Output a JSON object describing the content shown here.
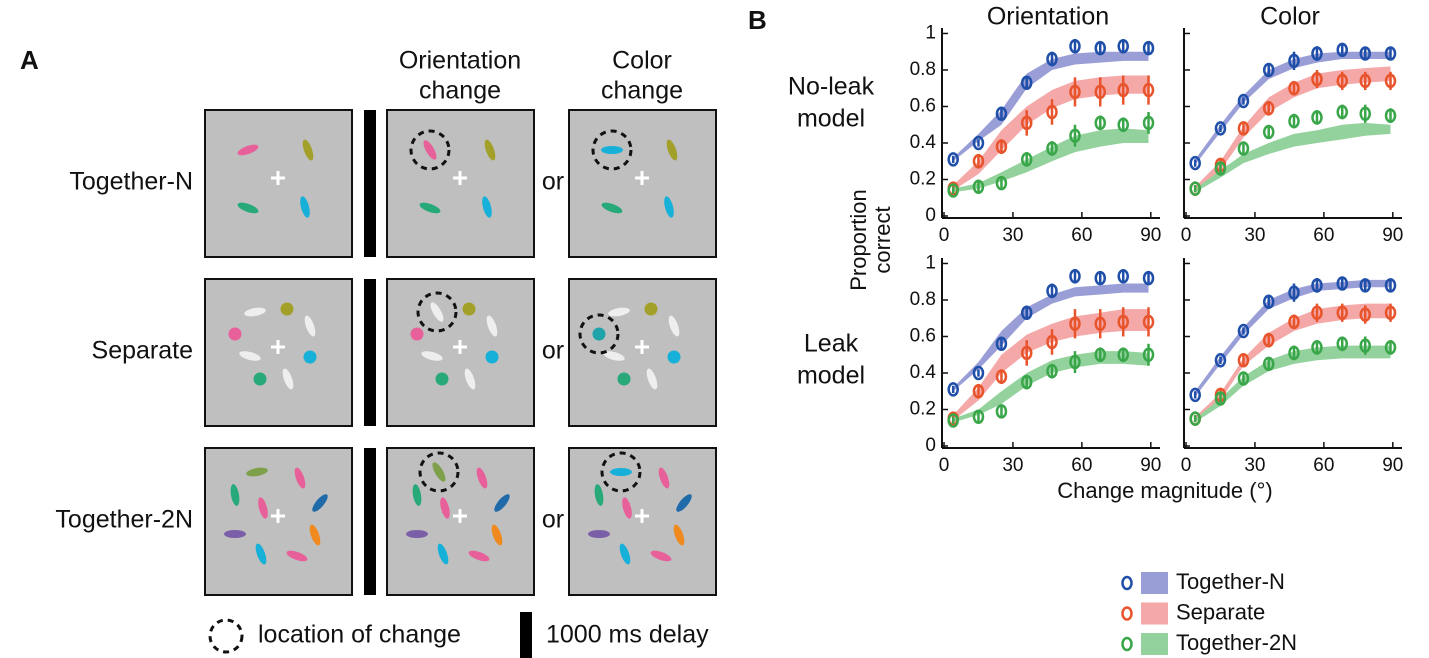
{
  "panel_a": {
    "label": "A",
    "columns": [
      [
        "Orientation",
        "change"
      ],
      [
        "Color",
        "change"
      ]
    ],
    "rows": [
      "Together-N",
      "Separate",
      "Together-2N"
    ],
    "connector": "or",
    "legend": [
      "location of change",
      "1000 ms delay"
    ]
  },
  "panel_b": {
    "label": "B",
    "ylabel": [
      "Proportion",
      "correct"
    ],
    "xlabel": "Change magnitude (°)"
  },
  "chart_data": [
    {
      "type": "line",
      "title": "Orientation",
      "row_label": [
        "No-leak",
        "model"
      ],
      "x": [
        4,
        15,
        25,
        36,
        47,
        57,
        68,
        78,
        89
      ],
      "xlim": [
        0,
        94
      ],
      "xticks": [
        0,
        30,
        60,
        90
      ],
      "ylim": [
        0,
        1.03
      ],
      "yticks": [
        0,
        0.2,
        0.4,
        0.6,
        0.8,
        1
      ],
      "series": [
        {
          "name": "Together-N",
          "color": "#1f4fa8",
          "band_color": "#9a9ed6",
          "values": [
            0.31,
            0.4,
            0.56,
            0.73,
            0.86,
            0.93,
            0.92,
            0.93,
            0.92
          ],
          "errors": [
            0.02,
            0.02,
            0.03,
            0.03,
            0.04,
            0.04,
            0.03,
            0.03,
            0.03
          ],
          "model_low": [
            0.3,
            0.41,
            0.5,
            0.7,
            0.8,
            0.83,
            0.84,
            0.85,
            0.85
          ],
          "model_high": [
            0.32,
            0.45,
            0.58,
            0.78,
            0.86,
            0.89,
            0.9,
            0.9,
            0.9
          ]
        },
        {
          "name": "Separate",
          "color": "#e8542c",
          "band_color": "#f5a8a8",
          "values": [
            0.15,
            0.3,
            0.38,
            0.51,
            0.57,
            0.68,
            0.68,
            0.69,
            0.69
          ],
          "errors": [
            0.03,
            0.04,
            0.04,
            0.07,
            0.07,
            0.08,
            0.08,
            0.08,
            0.08
          ],
          "model_low": [
            0.14,
            0.23,
            0.36,
            0.5,
            0.59,
            0.64,
            0.66,
            0.67,
            0.67
          ],
          "model_high": [
            0.17,
            0.3,
            0.47,
            0.6,
            0.69,
            0.74,
            0.76,
            0.77,
            0.77
          ]
        },
        {
          "name": "Together-2N",
          "color": "#3aa64a",
          "band_color": "#93d29c",
          "values": [
            0.14,
            0.16,
            0.18,
            0.31,
            0.37,
            0.44,
            0.51,
            0.5,
            0.51
          ],
          "errors": [
            0.02,
            0.03,
            0.03,
            0.04,
            0.04,
            0.06,
            0.04,
            0.04,
            0.06
          ],
          "model_low": [
            0.13,
            0.15,
            0.19,
            0.24,
            0.3,
            0.35,
            0.38,
            0.4,
            0.4
          ],
          "model_high": [
            0.15,
            0.18,
            0.24,
            0.31,
            0.38,
            0.44,
            0.47,
            0.48,
            0.47
          ]
        }
      ]
    },
    {
      "type": "line",
      "title": "Color",
      "x": [
        4,
        15,
        25,
        36,
        47,
        57,
        68,
        78,
        89
      ],
      "xlim": [
        0,
        94
      ],
      "xticks": [
        0,
        30,
        60,
        90
      ],
      "ylim": [
        0,
        1.03
      ],
      "yticks": [
        0,
        0.2,
        0.4,
        0.6,
        0.8,
        1
      ],
      "series": [
        {
          "color": "#1f4fa8",
          "band_color": "#9a9ed6",
          "values": [
            0.29,
            0.48,
            0.63,
            0.8,
            0.85,
            0.89,
            0.91,
            0.89,
            0.89
          ],
          "errors": [
            0.02,
            0.02,
            0.02,
            0.03,
            0.05,
            0.04,
            0.03,
            0.03,
            0.03
          ],
          "model_low": [
            0.28,
            0.46,
            0.62,
            0.75,
            0.81,
            0.84,
            0.86,
            0.86,
            0.86
          ],
          "model_high": [
            0.31,
            0.5,
            0.66,
            0.8,
            0.86,
            0.89,
            0.9,
            0.9,
            0.9
          ]
        },
        {
          "color": "#e8542c",
          "band_color": "#f5a8a8",
          "values": [
            0.15,
            0.28,
            0.48,
            0.59,
            0.7,
            0.75,
            0.74,
            0.74,
            0.74
          ],
          "errors": [
            0.02,
            0.03,
            0.03,
            0.04,
            0.04,
            0.05,
            0.05,
            0.05,
            0.05
          ],
          "model_low": [
            0.13,
            0.25,
            0.43,
            0.57,
            0.65,
            0.7,
            0.72,
            0.73,
            0.74
          ],
          "model_high": [
            0.16,
            0.3,
            0.49,
            0.65,
            0.73,
            0.78,
            0.8,
            0.81,
            0.82
          ]
        },
        {
          "color": "#3aa64a",
          "band_color": "#93d29c",
          "values": [
            0.15,
            0.26,
            0.37,
            0.46,
            0.52,
            0.54,
            0.57,
            0.56,
            0.55
          ],
          "errors": [
            0.02,
            0.03,
            0.03,
            0.03,
            0.04,
            0.04,
            0.04,
            0.05,
            0.04
          ],
          "model_low": [
            0.13,
            0.21,
            0.29,
            0.34,
            0.38,
            0.4,
            0.42,
            0.44,
            0.45
          ],
          "model_high": [
            0.15,
            0.25,
            0.34,
            0.4,
            0.45,
            0.47,
            0.5,
            0.51,
            0.5
          ]
        }
      ]
    },
    {
      "type": "line",
      "row_label": [
        "Leak",
        "model"
      ],
      "x": [
        4,
        15,
        25,
        36,
        47,
        57,
        68,
        78,
        89
      ],
      "xlim": [
        0,
        94
      ],
      "xticks": [
        0,
        30,
        60,
        90
      ],
      "ylim": [
        0,
        1.03
      ],
      "yticks": [
        0,
        0.2,
        0.4,
        0.6,
        0.8,
        1
      ],
      "series": [
        {
          "color": "#1f4fa8",
          "band_color": "#9a9ed6",
          "values": [
            0.31,
            0.4,
            0.56,
            0.73,
            0.85,
            0.93,
            0.92,
            0.93,
            0.92
          ],
          "errors": [
            0.02,
            0.02,
            0.03,
            0.03,
            0.04,
            0.04,
            0.03,
            0.03,
            0.03
          ],
          "model_low": [
            0.3,
            0.42,
            0.55,
            0.7,
            0.78,
            0.82,
            0.83,
            0.84,
            0.84
          ],
          "model_high": [
            0.32,
            0.46,
            0.63,
            0.76,
            0.83,
            0.87,
            0.88,
            0.89,
            0.89
          ]
        },
        {
          "color": "#e8542c",
          "band_color": "#f5a8a8",
          "values": [
            0.15,
            0.3,
            0.38,
            0.51,
            0.57,
            0.67,
            0.67,
            0.68,
            0.68
          ],
          "errors": [
            0.03,
            0.04,
            0.04,
            0.07,
            0.07,
            0.08,
            0.08,
            0.08,
            0.08
          ],
          "model_low": [
            0.14,
            0.25,
            0.4,
            0.51,
            0.57,
            0.6,
            0.62,
            0.63,
            0.63
          ],
          "model_high": [
            0.17,
            0.32,
            0.5,
            0.61,
            0.67,
            0.71,
            0.73,
            0.75,
            0.75
          ]
        },
        {
          "color": "#3aa64a",
          "band_color": "#93d29c",
          "values": [
            0.14,
            0.16,
            0.19,
            0.35,
            0.41,
            0.46,
            0.5,
            0.5,
            0.5
          ],
          "errors": [
            0.02,
            0.03,
            0.03,
            0.04,
            0.04,
            0.06,
            0.04,
            0.04,
            0.06
          ],
          "model_low": [
            0.13,
            0.17,
            0.23,
            0.33,
            0.4,
            0.43,
            0.45,
            0.45,
            0.44
          ],
          "model_high": [
            0.15,
            0.2,
            0.3,
            0.4,
            0.47,
            0.5,
            0.52,
            0.52,
            0.51
          ]
        }
      ]
    },
    {
      "type": "line",
      "x": [
        4,
        15,
        25,
        36,
        47,
        57,
        68,
        78,
        89
      ],
      "xlim": [
        0,
        94
      ],
      "xticks": [
        0,
        30,
        60,
        90
      ],
      "ylim": [
        0,
        1.03
      ],
      "yticks": [
        0,
        0.2,
        0.4,
        0.6,
        0.8,
        1
      ],
      "series": [
        {
          "color": "#1f4fa8",
          "band_color": "#9a9ed6",
          "values": [
            0.28,
            0.47,
            0.63,
            0.79,
            0.84,
            0.88,
            0.89,
            0.88,
            0.88
          ],
          "errors": [
            0.02,
            0.02,
            0.02,
            0.03,
            0.05,
            0.04,
            0.03,
            0.03,
            0.03
          ],
          "model_low": [
            0.27,
            0.45,
            0.61,
            0.75,
            0.81,
            0.85,
            0.86,
            0.87,
            0.87
          ],
          "model_high": [
            0.3,
            0.49,
            0.65,
            0.8,
            0.86,
            0.89,
            0.9,
            0.91,
            0.91
          ]
        },
        {
          "color": "#e8542c",
          "band_color": "#f5a8a8",
          "values": [
            0.15,
            0.28,
            0.47,
            0.58,
            0.68,
            0.73,
            0.73,
            0.72,
            0.73
          ],
          "errors": [
            0.02,
            0.03,
            0.03,
            0.04,
            0.04,
            0.05,
            0.05,
            0.05,
            0.05
          ],
          "model_low": [
            0.13,
            0.25,
            0.44,
            0.55,
            0.63,
            0.67,
            0.69,
            0.7,
            0.7
          ],
          "model_high": [
            0.16,
            0.29,
            0.48,
            0.62,
            0.7,
            0.75,
            0.77,
            0.78,
            0.78
          ]
        },
        {
          "color": "#3aa64a",
          "band_color": "#93d29c",
          "values": [
            0.15,
            0.26,
            0.37,
            0.45,
            0.51,
            0.54,
            0.56,
            0.55,
            0.54
          ],
          "errors": [
            0.02,
            0.03,
            0.03,
            0.03,
            0.04,
            0.04,
            0.04,
            0.05,
            0.04
          ],
          "model_low": [
            0.13,
            0.22,
            0.33,
            0.41,
            0.45,
            0.47,
            0.48,
            0.48,
            0.48
          ],
          "model_high": [
            0.15,
            0.26,
            0.38,
            0.47,
            0.52,
            0.54,
            0.55,
            0.55,
            0.55
          ]
        }
      ]
    }
  ]
}
